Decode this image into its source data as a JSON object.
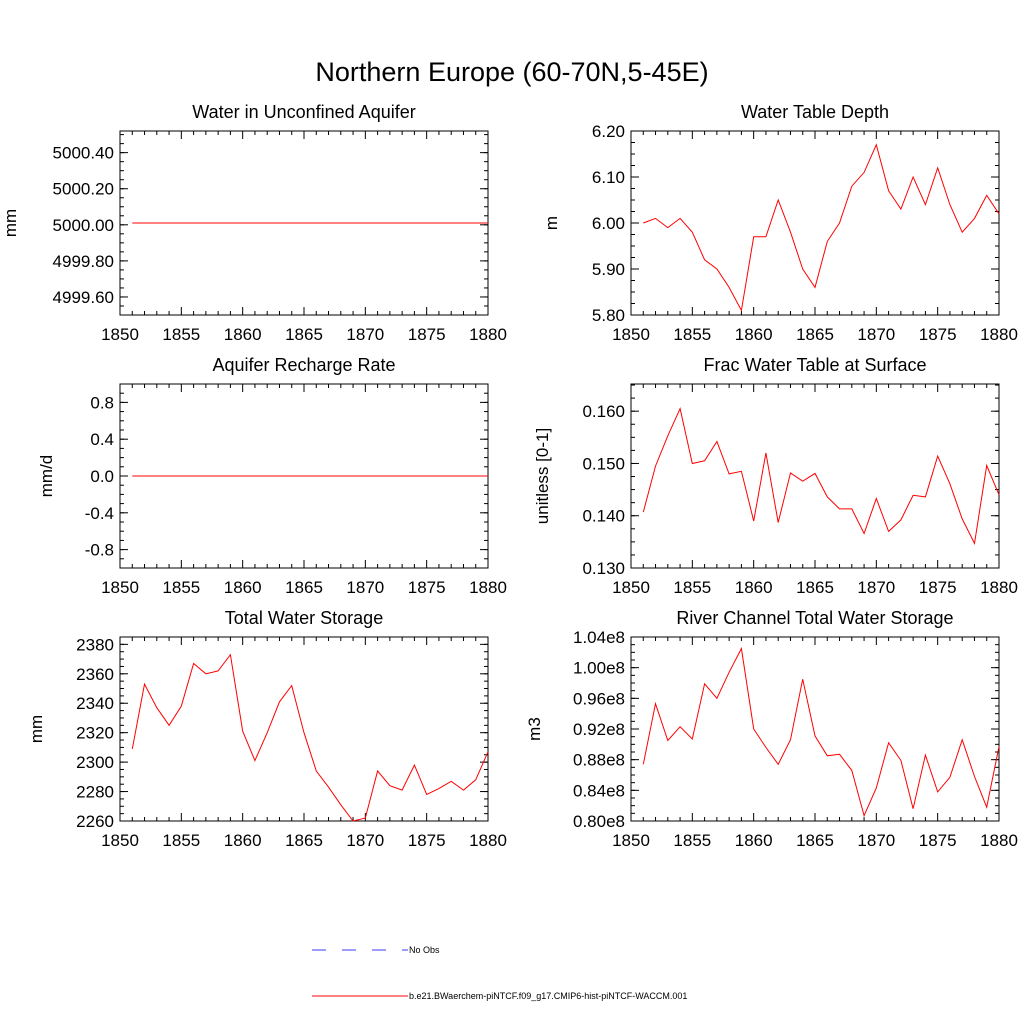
{
  "figure": {
    "title": "Northern Europe (60-70N,5-45E)"
  },
  "legend": {
    "items": [
      {
        "label": "No Obs",
        "style": "dashed",
        "color": "#3b3bff"
      },
      {
        "label": "b.e21.BWaerchem-piNTCF.f09_g17.CMIP6-hist-piNTCF-WACCM.001",
        "style": "solid",
        "color": "#ff0000"
      }
    ]
  },
  "chart_data": [
    {
      "type": "line",
      "title": "Water in Unconfined Aquifer",
      "ylabel": "mm",
      "xlim": [
        1850,
        1880
      ],
      "ylim": [
        4999.5,
        5000.52
      ],
      "xticks": [
        1850,
        1855,
        1860,
        1865,
        1870,
        1875,
        1880
      ],
      "xtick_labels": [
        "1850",
        "1855",
        "1860",
        "1865",
        "1870",
        "1875",
        "1880"
      ],
      "yticks": [
        4999.6,
        4999.8,
        5000.0,
        5000.2,
        5000.4
      ],
      "ytick_labels": [
        "4999.60",
        "4999.80",
        "5000.00",
        "5000.20",
        "5000.40"
      ],
      "series": [
        {
          "color": "#ff0000",
          "x": [
            1851,
            1852,
            1853,
            1854,
            1855,
            1856,
            1857,
            1858,
            1859,
            1860,
            1861,
            1862,
            1863,
            1864,
            1865,
            1866,
            1867,
            1868,
            1869,
            1870,
            1871,
            1872,
            1873,
            1874,
            1875,
            1876,
            1877,
            1878,
            1879,
            1880
          ],
          "values": [
            5000.01,
            5000.01,
            5000.01,
            5000.01,
            5000.01,
            5000.01,
            5000.01,
            5000.01,
            5000.01,
            5000.01,
            5000.01,
            5000.01,
            5000.01,
            5000.01,
            5000.01,
            5000.01,
            5000.01,
            5000.01,
            5000.01,
            5000.01,
            5000.01,
            5000.01,
            5000.01,
            5000.01,
            5000.01,
            5000.01,
            5000.01,
            5000.01,
            5000.01,
            5000.01
          ]
        }
      ]
    },
    {
      "type": "line",
      "title": "Water Table Depth",
      "ylabel": "m",
      "xlim": [
        1850,
        1880
      ],
      "ylim": [
        5.8,
        6.2
      ],
      "xticks": [
        1850,
        1855,
        1860,
        1865,
        1870,
        1875,
        1880
      ],
      "xtick_labels": [
        "1850",
        "1855",
        "1860",
        "1865",
        "1870",
        "1875",
        "1880"
      ],
      "yticks": [
        5.8,
        5.9,
        6.0,
        6.1,
        6.2
      ],
      "ytick_labels": [
        "5.80",
        "5.90",
        "6.00",
        "6.10",
        "6.20"
      ],
      "series": [
        {
          "color": "#ff0000",
          "x": [
            1851,
            1852,
            1853,
            1854,
            1855,
            1856,
            1857,
            1858,
            1859,
            1860,
            1861,
            1862,
            1863,
            1864,
            1865,
            1866,
            1867,
            1868,
            1869,
            1870,
            1871,
            1872,
            1873,
            1874,
            1875,
            1876,
            1877,
            1878,
            1879,
            1880
          ],
          "values": [
            6.0,
            6.01,
            5.99,
            6.01,
            5.98,
            5.92,
            5.9,
            5.86,
            5.81,
            5.97,
            5.97,
            6.05,
            5.98,
            5.9,
            5.86,
            5.96,
            6.0,
            6.08,
            6.11,
            6.17,
            6.07,
            6.03,
            6.1,
            6.04,
            6.12,
            6.04,
            5.98,
            6.01,
            6.06,
            6.02
          ]
        }
      ]
    },
    {
      "type": "line",
      "title": "Aquifer Recharge Rate",
      "ylabel": "mm/d",
      "xlim": [
        1850,
        1880
      ],
      "ylim": [
        -1.0,
        1.0
      ],
      "xticks": [
        1850,
        1855,
        1860,
        1865,
        1870,
        1875,
        1880
      ],
      "xtick_labels": [
        "1850",
        "1855",
        "1860",
        "1865",
        "1870",
        "1875",
        "1880"
      ],
      "yticks": [
        -0.8,
        -0.4,
        0.0,
        0.4,
        0.8
      ],
      "ytick_labels": [
        "-0.8",
        "-0.4",
        "0.0",
        "0.4",
        "0.8"
      ],
      "series": [
        {
          "color": "#ff0000",
          "x": [
            1851,
            1852,
            1853,
            1854,
            1855,
            1856,
            1857,
            1858,
            1859,
            1860,
            1861,
            1862,
            1863,
            1864,
            1865,
            1866,
            1867,
            1868,
            1869,
            1870,
            1871,
            1872,
            1873,
            1874,
            1875,
            1876,
            1877,
            1878,
            1879,
            1880
          ],
          "values": [
            0,
            0,
            0,
            0,
            0,
            0,
            0,
            0,
            0,
            0,
            0,
            0,
            0,
            0,
            0,
            0,
            0,
            0,
            0,
            0,
            0,
            0,
            0,
            0,
            0,
            0,
            0,
            0,
            0,
            0
          ]
        }
      ]
    },
    {
      "type": "line",
      "title": "Frac Water Table at Surface",
      "ylabel": "unitless [0-1]",
      "xlim": [
        1850,
        1880
      ],
      "ylim": [
        0.13,
        0.1652
      ],
      "xticks": [
        1850,
        1855,
        1860,
        1865,
        1870,
        1875,
        1880
      ],
      "xtick_labels": [
        "1850",
        "1855",
        "1860",
        "1865",
        "1870",
        "1875",
        "1880"
      ],
      "yticks": [
        0.13,
        0.14,
        0.15,
        0.16
      ],
      "ytick_labels": [
        "0.130",
        "0.140",
        "0.150",
        "0.160"
      ],
      "series": [
        {
          "color": "#ff0000",
          "x": [
            1851,
            1852,
            1853,
            1854,
            1855,
            1856,
            1857,
            1858,
            1859,
            1860,
            1861,
            1862,
            1863,
            1864,
            1865,
            1866,
            1867,
            1868,
            1869,
            1870,
            1871,
            1872,
            1873,
            1874,
            1875,
            1876,
            1877,
            1878,
            1879,
            1880
          ],
          "values": [
            0.1407,
            0.1495,
            0.1553,
            0.1605,
            0.15,
            0.1505,
            0.1542,
            0.148,
            0.1485,
            0.139,
            0.152,
            0.1387,
            0.1482,
            0.1466,
            0.1481,
            0.1436,
            0.1413,
            0.1413,
            0.1366,
            0.1433,
            0.137,
            0.1392,
            0.1439,
            0.1436,
            0.1514,
            0.1461,
            0.1394,
            0.1347,
            0.1496,
            0.144
          ]
        }
      ]
    },
    {
      "type": "line",
      "title": "Total Water Storage",
      "ylabel": "mm",
      "xlim": [
        1850,
        1880
      ],
      "ylim": [
        2260,
        2385
      ],
      "xticks": [
        1850,
        1855,
        1860,
        1865,
        1870,
        1875,
        1880
      ],
      "xtick_labels": [
        "1850",
        "1855",
        "1860",
        "1865",
        "1870",
        "1875",
        "1880"
      ],
      "yticks": [
        2260,
        2280,
        2300,
        2320,
        2340,
        2360,
        2380
      ],
      "ytick_labels": [
        "2260",
        "2280",
        "2300",
        "2320",
        "2340",
        "2360",
        "2380"
      ],
      "series": [
        {
          "color": "#ff0000",
          "x": [
            1851,
            1852,
            1853,
            1854,
            1855,
            1856,
            1857,
            1858,
            1859,
            1860,
            1861,
            1862,
            1863,
            1864,
            1865,
            1866,
            1867,
            1868,
            1869,
            1870,
            1871,
            1872,
            1873,
            1874,
            1875,
            1876,
            1877,
            1878,
            1879,
            1880
          ],
          "values": [
            2309,
            2353,
            2337,
            2325,
            2338,
            2367,
            2360,
            2362,
            2373,
            2321,
            2301,
            2320,
            2341,
            2352,
            2320,
            2294,
            2283,
            2271,
            2260,
            2262,
            2294,
            2284,
            2281,
            2298,
            2278,
            2282,
            2287,
            2281,
            2288,
            2307
          ]
        }
      ]
    },
    {
      "type": "line",
      "title": "River Channel Total Water Storage",
      "ylabel": "m3",
      "xlim": [
        1850,
        1880
      ],
      "ylim": [
        80000000.0,
        104000000.0
      ],
      "xticks": [
        1850,
        1855,
        1860,
        1865,
        1870,
        1875,
        1880
      ],
      "xtick_labels": [
        "1850",
        "1855",
        "1860",
        "1865",
        "1870",
        "1875",
        "1880"
      ],
      "yticks": [
        80000000.0,
        84000000.0,
        88000000.0,
        92000000.0,
        96000000.0,
        100000000.0,
        104000000.0
      ],
      "ytick_labels": [
        "0.80e8",
        "0.84e8",
        "0.88e8",
        "0.92e8",
        "0.96e8",
        "1.00e8",
        "1.04e8"
      ],
      "series": [
        {
          "color": "#ff0000",
          "x": [
            1851,
            1852,
            1853,
            1854,
            1855,
            1856,
            1857,
            1858,
            1859,
            1860,
            1861,
            1862,
            1863,
            1864,
            1865,
            1866,
            1867,
            1868,
            1869,
            1870,
            1871,
            1872,
            1873,
            1874,
            1875,
            1876,
            1877,
            1878,
            1879,
            1880
          ],
          "values": [
            87400000.0,
            95300000.0,
            90500000.0,
            92300000.0,
            90700000.0,
            97900000.0,
            96000000.0,
            99400000.0,
            102500000.0,
            92000000.0,
            89600000.0,
            87400000.0,
            90600000.0,
            98500000.0,
            91100000.0,
            88500000.0,
            88700000.0,
            86600000.0,
            80700000.0,
            84300000.0,
            90200000.0,
            87900000.0,
            81600000.0,
            88600000.0,
            83800000.0,
            85700000.0,
            90600000.0,
            85800000.0,
            81800000.0,
            89700000.0
          ]
        }
      ]
    }
  ]
}
